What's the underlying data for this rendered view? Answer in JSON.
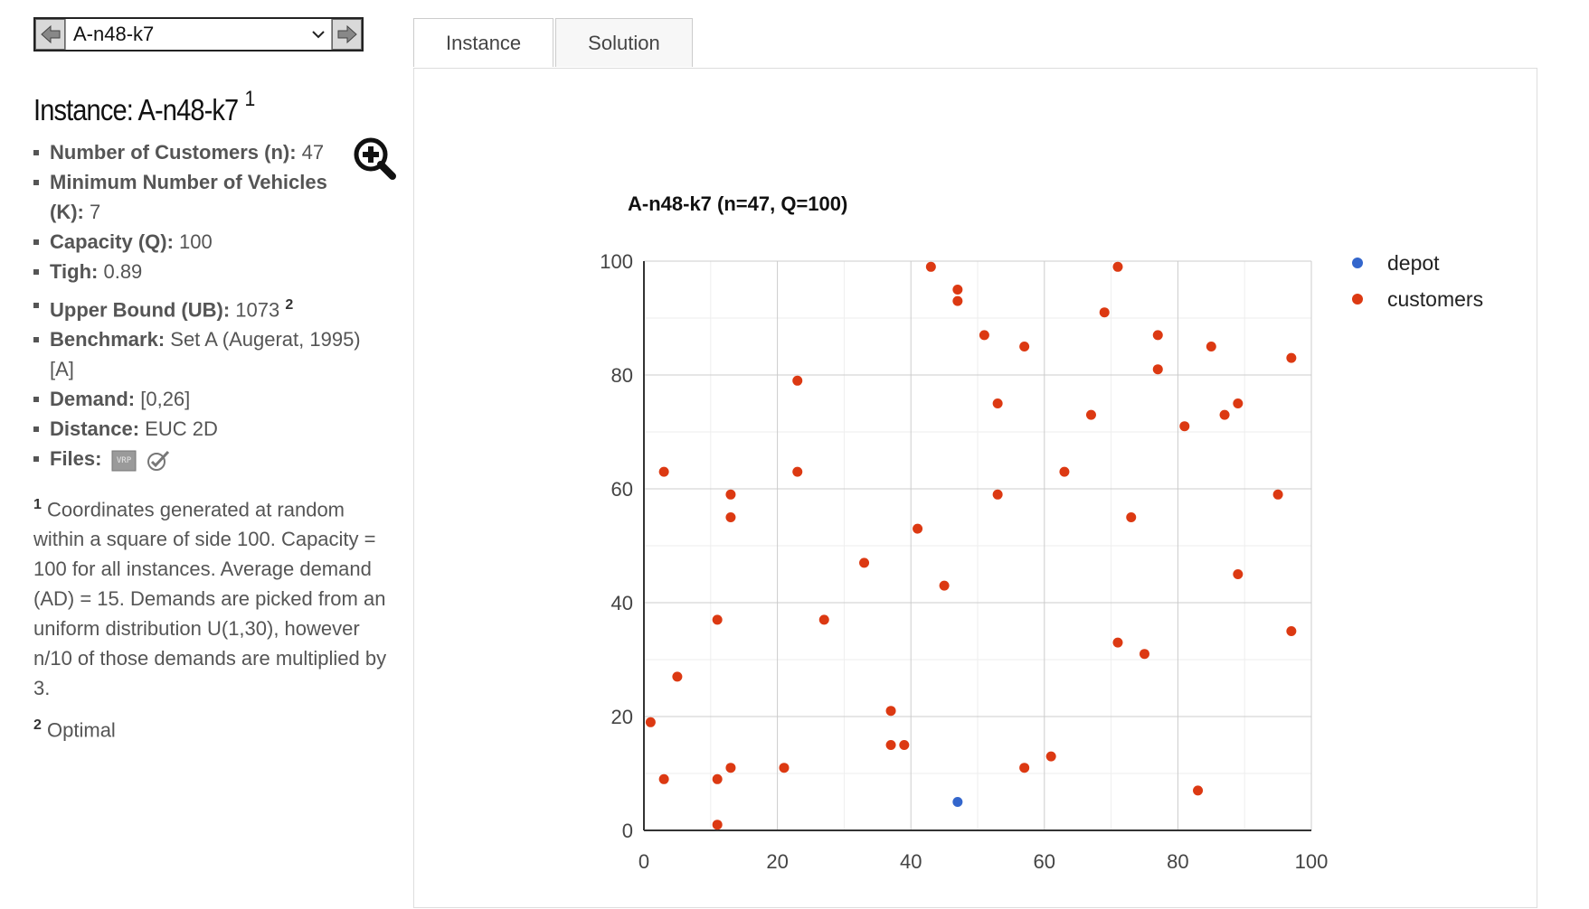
{
  "nav": {
    "selected": "A-n48-k7",
    "prev_icon": "arrow-left-icon",
    "next_icon": "arrow-right-icon"
  },
  "instance": {
    "title_prefix": "Instance: ",
    "name": "A-n48-k7",
    "title_note": "1",
    "props": [
      {
        "label": "Number of Customers (n):",
        "value": " 47"
      },
      {
        "label": "Minimum Number of Vehicles (K):",
        "value": " 7"
      },
      {
        "label": "Capacity (Q):",
        "value": " 100"
      },
      {
        "label": "Tigh:",
        "value": " 0.89"
      },
      {
        "label": "Upper Bound (UB):",
        "value": " 1073 ",
        "note": "2"
      },
      {
        "label": "Benchmark:",
        "value": " Set A (Augerat, 1995) [A]"
      },
      {
        "label": "Demand:",
        "value": " [0,26]"
      },
      {
        "label": "Distance:",
        "value": " EUC 2D"
      },
      {
        "label": "Files:",
        "value": ""
      }
    ],
    "notes": [
      {
        "num": "1",
        "text": " Coordinates generated at random within a square of side 100. Capacity = 100 for all instances. Average demand (AD) = 15. Demands are picked from an uniform distribution U(1,30), however n/10 of those demands are multiplied by 3."
      },
      {
        "num": "2",
        "text": " Optimal"
      }
    ],
    "file_badge": "VRP"
  },
  "tabs": [
    "Instance",
    "Solution"
  ],
  "chart_data": {
    "type": "scatter",
    "title": "A-n48-k7 (n=47, Q=100)",
    "xlim": [
      0,
      100
    ],
    "ylim": [
      0,
      100
    ],
    "xticks": [
      0,
      20,
      40,
      60,
      80,
      100
    ],
    "yticks": [
      0,
      20,
      40,
      60,
      80,
      100
    ],
    "grid": true,
    "legend_position": "right",
    "series": [
      {
        "name": "depot",
        "color": "#3366cc",
        "points": [
          [
            47,
            5
          ]
        ]
      },
      {
        "name": "customers",
        "color": "#dc3912",
        "points": [
          [
            1,
            19
          ],
          [
            3,
            63
          ],
          [
            3,
            9
          ],
          [
            5,
            27
          ],
          [
            11,
            37
          ],
          [
            11,
            9
          ],
          [
            11,
            1
          ],
          [
            13,
            59
          ],
          [
            13,
            55
          ],
          [
            13,
            11
          ],
          [
            21,
            11
          ],
          [
            23,
            79
          ],
          [
            23,
            63
          ],
          [
            27,
            37
          ],
          [
            33,
            47
          ],
          [
            37,
            21
          ],
          [
            37,
            15
          ],
          [
            39,
            15
          ],
          [
            41,
            53
          ],
          [
            43,
            99
          ],
          [
            45,
            43
          ],
          [
            47,
            95
          ],
          [
            47,
            93
          ],
          [
            51,
            87
          ],
          [
            53,
            75
          ],
          [
            53,
            59
          ],
          [
            57,
            85
          ],
          [
            57,
            11
          ],
          [
            61,
            13
          ],
          [
            63,
            63
          ],
          [
            67,
            73
          ],
          [
            69,
            91
          ],
          [
            71,
            99
          ],
          [
            71,
            33
          ],
          [
            73,
            55
          ],
          [
            75,
            31
          ],
          [
            77,
            87
          ],
          [
            77,
            81
          ],
          [
            81,
            71
          ],
          [
            83,
            7
          ],
          [
            85,
            85
          ],
          [
            87,
            73
          ],
          [
            89,
            75
          ],
          [
            89,
            45
          ],
          [
            95,
            59
          ],
          [
            97,
            83
          ],
          [
            97,
            35
          ]
        ]
      }
    ]
  }
}
